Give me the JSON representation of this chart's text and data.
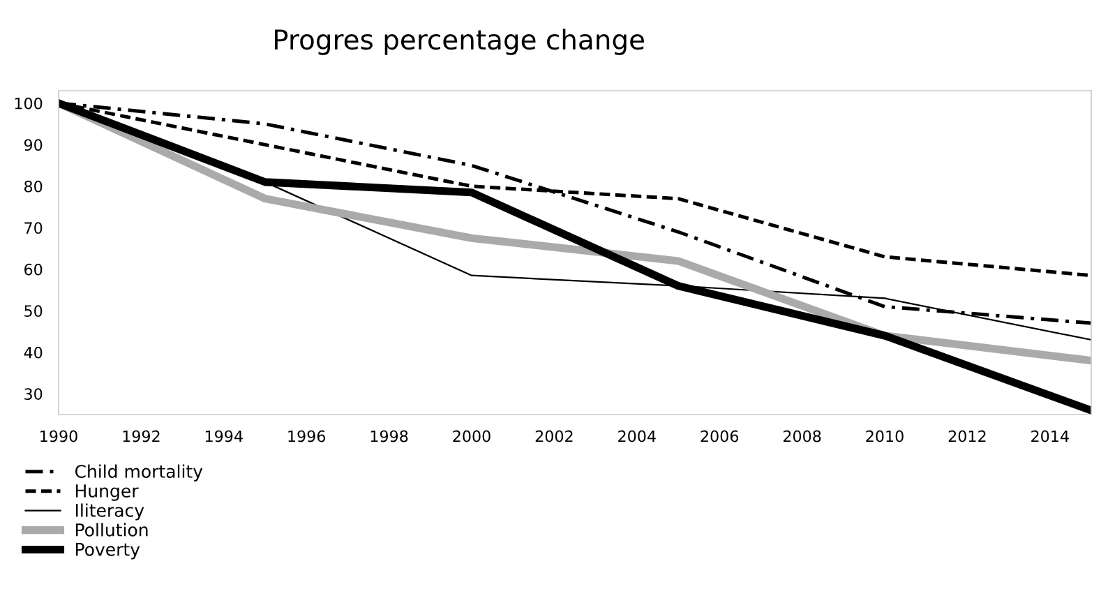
{
  "chart_data": {
    "type": "line",
    "title": "Progres percentage change",
    "x": [
      1990,
      1995,
      2000,
      2005,
      2010,
      2015
    ],
    "series": [
      {
        "name": "Child mortality",
        "color": "#000000",
        "line_style": "dashdot",
        "values": [
          100,
          95,
          85,
          69,
          51,
          47
        ]
      },
      {
        "name": "Hunger",
        "color": "#000000",
        "line_style": "dashed",
        "values": [
          100,
          90,
          80,
          77,
          63,
          58.5
        ]
      },
      {
        "name": "Iliteracy",
        "color": "#000000",
        "line_style": "solid",
        "values": [
          100,
          81,
          58.5,
          56,
          53,
          43
        ]
      },
      {
        "name": "Pollution",
        "color": "#aaaaaa",
        "line_style": "solid",
        "values": [
          100,
          77,
          67.5,
          62,
          44,
          38
        ]
      },
      {
        "name": "Poverty",
        "color": "#000000",
        "line_style": "solid",
        "values": [
          100,
          81,
          78.5,
          56,
          44,
          26
        ]
      }
    ],
    "xlim": [
      1990,
      2015
    ],
    "xticks": [
      1990,
      1992,
      1994,
      1996,
      1998,
      2000,
      2002,
      2004,
      2006,
      2008,
      2010,
      2012,
      2014
    ],
    "ylim": [
      25,
      103
    ],
    "yticks": [
      30,
      40,
      50,
      60,
      70,
      80,
      90,
      100
    ],
    "legend": "bottom left",
    "grid": false,
    "marker": "none"
  }
}
